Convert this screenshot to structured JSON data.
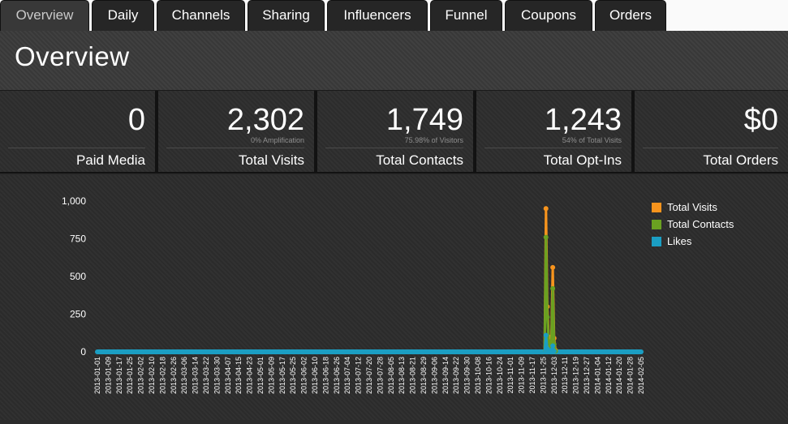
{
  "tabs": [
    {
      "label": "Overview",
      "active": true
    },
    {
      "label": "Daily"
    },
    {
      "label": "Channels"
    },
    {
      "label": "Sharing"
    },
    {
      "label": "Influencers"
    },
    {
      "label": "Funnel"
    },
    {
      "label": "Coupons"
    },
    {
      "label": "Orders"
    }
  ],
  "page_title": "Overview",
  "stats": [
    {
      "value": "0",
      "label": "Paid Media",
      "sub": ""
    },
    {
      "value": "2,302",
      "label": "Total Visits",
      "sub": "0% Amplification"
    },
    {
      "value": "1,749",
      "label": "Total Contacts",
      "sub": "75.98% of Visitors"
    },
    {
      "value": "1,243",
      "label": "Total Opt-Ins",
      "sub": "54% of Total Visits"
    },
    {
      "value": "$0",
      "label": "Total Orders",
      "sub": ""
    }
  ],
  "chart_data": {
    "type": "line",
    "ylim": [
      0,
      1000
    ],
    "yticks": [
      "1,000",
      "750",
      "500",
      "250",
      "0"
    ],
    "x_tick_labels": [
      "2013-01-01",
      "2013-01-09",
      "2013-01-17",
      "2013-01-25",
      "2013-02-02",
      "2013-02-10",
      "2013-02-18",
      "2013-02-26",
      "2013-03-06",
      "2013-03-14",
      "2013-03-22",
      "2013-03-30",
      "2013-04-07",
      "2013-04-15",
      "2013-04-23",
      "2013-05-01",
      "2013-05-09",
      "2013-05-17",
      "2013-05-25",
      "2013-06-02",
      "2013-06-10",
      "2013-06-18",
      "2013-06-26",
      "2013-07-04",
      "2013-07-12",
      "2013-07-20",
      "2013-07-28",
      "2013-08-05",
      "2013-08-13",
      "2013-08-21",
      "2013-08-29",
      "2013-09-06",
      "2013-09-14",
      "2013-09-22",
      "2013-09-30",
      "2013-10-08",
      "2013-10-16",
      "2013-10-24",
      "2013-11-01",
      "2013-11-09",
      "2013-11-17",
      "2013-11-25",
      "2013-12-03",
      "2013-12-11",
      "2013-12-19",
      "2013-12-27",
      "2014-01-04",
      "2014-01-12",
      "2014-01-20",
      "2014-01-28",
      "2014-02-05"
    ],
    "series": [
      {
        "name": "Total Visits",
        "color": "#f7941d",
        "points": [
          [
            "2013-11-26",
            0
          ],
          [
            "2013-11-27",
            950
          ],
          [
            "2013-11-28",
            300
          ],
          [
            "2013-11-29",
            100
          ],
          [
            "2013-11-30",
            30
          ],
          [
            "2013-12-01",
            90
          ],
          [
            "2013-12-02",
            560
          ],
          [
            "2013-12-03",
            90
          ],
          [
            "2013-12-04",
            10
          ],
          [
            "2013-12-05",
            0
          ]
        ]
      },
      {
        "name": "Total Contacts",
        "color": "#6aa121",
        "points": [
          [
            "2013-11-26",
            0
          ],
          [
            "2013-11-27",
            760
          ],
          [
            "2013-11-28",
            230
          ],
          [
            "2013-11-29",
            70
          ],
          [
            "2013-11-30",
            20
          ],
          [
            "2013-12-01",
            60
          ],
          [
            "2013-12-02",
            420
          ],
          [
            "2013-12-03",
            50
          ],
          [
            "2013-12-04",
            5
          ],
          [
            "2013-12-05",
            0
          ]
        ]
      },
      {
        "name": "Likes",
        "color": "#1b9ec3",
        "points": [
          [
            "2013-11-26",
            0
          ],
          [
            "2013-11-27",
            110
          ],
          [
            "2013-11-28",
            20
          ],
          [
            "2013-11-29",
            5
          ],
          [
            "2013-11-30",
            0
          ],
          [
            "2013-12-01",
            10
          ],
          [
            "2013-12-02",
            40
          ],
          [
            "2013-12-03",
            5
          ],
          [
            "2013-12-04",
            0
          ]
        ]
      }
    ],
    "legend_position": "right",
    "grid": false
  }
}
